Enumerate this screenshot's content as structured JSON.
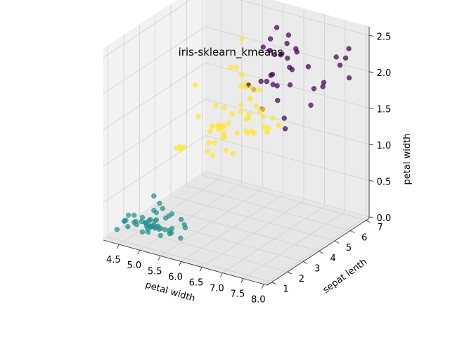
{
  "chart_data": {
    "type": "scatter",
    "projection": "3d",
    "title": "iris-sklearn_kmeans",
    "xlabel": "petal width",
    "ylabel": "sepat lenth",
    "zlabel": "petal width",
    "xlim": [
      4.3,
      7.9
    ],
    "ylim": [
      1.0,
      6.9
    ],
    "zlim": [
      0.1,
      2.5
    ],
    "xticks": [
      "4.5",
      "5.0",
      "5.5",
      "6.0",
      "6.5",
      "7.0",
      "7.5",
      "8.0"
    ],
    "yticks": [
      "1",
      "2",
      "3",
      "4",
      "5",
      "6",
      "7"
    ],
    "zticks": [
      "0.0",
      "0.5",
      "1.0",
      "1.5",
      "2.0",
      "2.5"
    ],
    "grid": true,
    "legend": "none",
    "colors": {
      "cluster_0": "#440154",
      "cluster_1": "#21918c",
      "cluster_2": "#fde725"
    },
    "series": [
      {
        "color": "#440154",
        "points": [
          [
            7.7,
            6.7,
            2.2
          ],
          [
            7.7,
            6.1,
            2.3
          ],
          [
            7.2,
            6.0,
            1.8
          ],
          [
            7.6,
            6.6,
            2.1
          ],
          [
            7.9,
            6.4,
            2.0
          ],
          [
            7.7,
            6.9,
            2.3
          ],
          [
            7.4,
            6.1,
            1.9
          ],
          [
            7.2,
            5.8,
            1.6
          ],
          [
            7.3,
            6.3,
            1.8
          ],
          [
            7.1,
            5.9,
            2.1
          ],
          [
            6.9,
            5.7,
            2.3
          ],
          [
            6.9,
            5.4,
            2.1
          ],
          [
            6.7,
            5.7,
            2.5
          ],
          [
            6.8,
            5.5,
            2.1
          ],
          [
            6.7,
            5.8,
            1.8
          ],
          [
            6.4,
            5.6,
            2.2
          ],
          [
            6.5,
            5.8,
            2.2
          ],
          [
            6.3,
            5.6,
            2.4
          ],
          [
            6.5,
            5.5,
            1.8
          ],
          [
            6.4,
            5.5,
            1.8
          ],
          [
            6.2,
            5.4,
            2.3
          ],
          [
            6.3,
            6.0,
            2.5
          ],
          [
            6.9,
            5.1,
            2.3
          ],
          [
            6.8,
            5.9,
            2.3
          ],
          [
            6.7,
            5.2,
            2.3
          ],
          [
            6.5,
            5.2,
            2.0
          ],
          [
            6.3,
            5.1,
            1.5
          ],
          [
            6.1,
            5.6,
            1.4
          ],
          [
            6.4,
            5.3,
            2.3
          ],
          [
            6.4,
            5.1,
            1.9
          ],
          [
            6.0,
            5.0,
            1.8
          ],
          [
            7.0,
            4.7,
            1.4
          ],
          [
            6.9,
            4.9,
            1.5
          ],
          [
            6.7,
            5.0,
            1.7
          ],
          [
            6.3,
            5.0,
            1.9
          ],
          [
            6.2,
            4.8,
            1.8
          ],
          [
            6.5,
            5.1,
            2.0
          ],
          [
            6.7,
            5.6,
            2.4
          ]
        ]
      },
      {
        "color": "#21918c",
        "points": [
          [
            5.1,
            1.4,
            0.2
          ],
          [
            4.9,
            1.4,
            0.2
          ],
          [
            4.7,
            1.3,
            0.2
          ],
          [
            4.6,
            1.5,
            0.2
          ],
          [
            5.0,
            1.4,
            0.2
          ],
          [
            5.4,
            1.7,
            0.4
          ],
          [
            4.6,
            1.4,
            0.3
          ],
          [
            5.0,
            1.5,
            0.2
          ],
          [
            4.4,
            1.4,
            0.2
          ],
          [
            4.9,
            1.5,
            0.1
          ],
          [
            5.4,
            1.5,
            0.2
          ],
          [
            4.8,
            1.6,
            0.2
          ],
          [
            4.8,
            1.4,
            0.1
          ],
          [
            4.3,
            1.1,
            0.1
          ],
          [
            5.8,
            1.2,
            0.2
          ],
          [
            5.7,
            1.5,
            0.4
          ],
          [
            5.4,
            1.3,
            0.4
          ],
          [
            5.1,
            1.4,
            0.3
          ],
          [
            5.7,
            1.7,
            0.3
          ],
          [
            5.1,
            1.5,
            0.3
          ],
          [
            5.4,
            1.7,
            0.2
          ],
          [
            5.1,
            1.5,
            0.4
          ],
          [
            4.6,
            1.0,
            0.2
          ],
          [
            5.1,
            1.7,
            0.5
          ],
          [
            4.8,
            1.9,
            0.2
          ],
          [
            5.0,
            1.6,
            0.2
          ],
          [
            5.0,
            1.6,
            0.4
          ],
          [
            5.2,
            1.5,
            0.2
          ],
          [
            5.2,
            1.4,
            0.2
          ],
          [
            4.7,
            1.6,
            0.2
          ],
          [
            4.8,
            1.6,
            0.2
          ],
          [
            5.4,
            1.5,
            0.4
          ],
          [
            5.2,
            1.5,
            0.1
          ],
          [
            5.5,
            1.4,
            0.2
          ],
          [
            4.9,
            1.5,
            0.2
          ],
          [
            5.0,
            1.2,
            0.2
          ],
          [
            5.5,
            1.3,
            0.2
          ],
          [
            4.4,
            1.3,
            0.2
          ],
          [
            5.1,
            1.5,
            0.2
          ],
          [
            5.0,
            1.3,
            0.3
          ],
          [
            4.5,
            1.3,
            0.3
          ],
          [
            4.4,
            1.3,
            0.2
          ],
          [
            5.0,
            1.6,
            0.6
          ],
          [
            5.1,
            1.9,
            0.4
          ],
          [
            4.8,
            1.4,
            0.3
          ],
          [
            5.1,
            1.6,
            0.2
          ],
          [
            4.6,
            1.4,
            0.2
          ],
          [
            5.3,
            1.5,
            0.2
          ],
          [
            5.0,
            1.4,
            0.2
          ],
          [
            5.8,
            1.5,
            0.3
          ]
        ]
      },
      {
        "color": "#fde725",
        "points": [
          [
            5.5,
            4.0,
            1.3
          ],
          [
            6.5,
            4.6,
            1.5
          ],
          [
            5.7,
            4.5,
            1.3
          ],
          [
            6.3,
            4.7,
            1.6
          ],
          [
            4.9,
            3.3,
            1.0
          ],
          [
            6.6,
            4.6,
            1.3
          ],
          [
            5.2,
            3.9,
            1.4
          ],
          [
            5.0,
            3.5,
            1.0
          ],
          [
            5.9,
            4.2,
            1.5
          ],
          [
            6.0,
            4.0,
            1.0
          ],
          [
            6.1,
            4.7,
            1.4
          ],
          [
            5.6,
            3.6,
            1.3
          ],
          [
            6.7,
            4.4,
            1.4
          ],
          [
            5.6,
            4.5,
            1.5
          ],
          [
            5.8,
            4.1,
            1.0
          ],
          [
            6.2,
            4.5,
            1.5
          ],
          [
            5.6,
            3.9,
            1.1
          ],
          [
            5.9,
            4.8,
            1.8
          ],
          [
            6.1,
            4.0,
            1.3
          ],
          [
            6.3,
            4.9,
            1.5
          ],
          [
            6.1,
            4.7,
            1.2
          ],
          [
            6.4,
            4.3,
            1.3
          ],
          [
            6.6,
            4.4,
            1.4
          ],
          [
            6.8,
            4.8,
            1.4
          ],
          [
            6.0,
            4.5,
            1.5
          ],
          [
            5.7,
            3.5,
            1.0
          ],
          [
            5.5,
            3.8,
            1.1
          ],
          [
            5.5,
            3.7,
            1.0
          ],
          [
            5.8,
            3.9,
            1.2
          ],
          [
            6.0,
            5.1,
            1.6
          ],
          [
            5.4,
            4.5,
            1.5
          ],
          [
            6.0,
            4.5,
            1.6
          ],
          [
            6.7,
            4.7,
            1.5
          ],
          [
            6.3,
            4.4,
            1.3
          ],
          [
            5.6,
            4.1,
            1.3
          ],
          [
            5.5,
            4.0,
            1.3
          ],
          [
            5.5,
            4.4,
            1.2
          ],
          [
            6.1,
            4.6,
            1.4
          ],
          [
            5.8,
            4.0,
            1.2
          ],
          [
            5.0,
            3.3,
            1.0
          ],
          [
            5.6,
            4.2,
            1.3
          ],
          [
            5.7,
            4.2,
            1.2
          ],
          [
            5.7,
            4.2,
            1.3
          ],
          [
            6.2,
            4.3,
            1.3
          ],
          [
            5.1,
            3.0,
            1.1
          ],
          [
            5.7,
            4.1,
            1.3
          ],
          [
            5.8,
            5.1,
            2.4
          ],
          [
            4.9,
            4.5,
            1.7
          ],
          [
            5.7,
            5.0,
            2.0
          ],
          [
            5.8,
            5.1,
            1.9
          ],
          [
            6.0,
            4.8,
            1.8
          ],
          [
            5.6,
            4.9,
            2.0
          ],
          [
            6.3,
            4.9,
            1.8
          ],
          [
            6.2,
            4.8,
            1.8
          ],
          [
            6.1,
            4.9,
            1.8
          ],
          [
            5.9,
            5.1,
            1.8
          ],
          [
            6.3,
            5.1,
            1.5
          ],
          [
            6.0,
            5.1,
            1.6
          ]
        ]
      }
    ]
  }
}
